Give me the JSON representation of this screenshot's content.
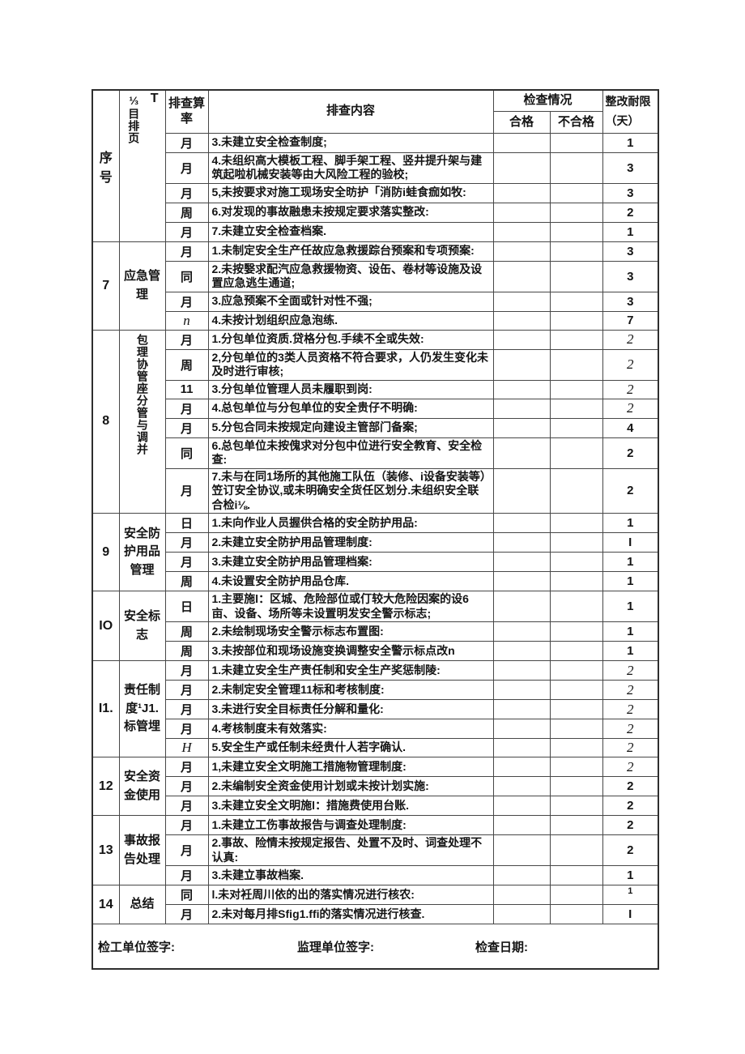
{
  "header": {
    "col_serial": "序号",
    "col_category": "⅓目排页",
    "category_mark": "T",
    "col_freq": "排查算率",
    "col_content": "排查内容",
    "col_check": "检查情况",
    "col_pass": "合格",
    "col_fail": "不合格",
    "col_deadline": "整改耐限（天）"
  },
  "sections": [
    {
      "serial": "",
      "category": "",
      "vertical": false,
      "rows": [
        {
          "freq": "月",
          "content": "3.未建立安全检查制度;",
          "pass": "",
          "fail": "",
          "deadline": "1"
        },
        {
          "freq": "月",
          "content": "4.未组织高大模板工程、脚手架工程、竖井提升架与建筑起啦机械安装等由大风险工程的验校;",
          "pass": "",
          "fail": "",
          "deadline": "3"
        },
        {
          "freq": "月",
          "content": "5,未按要求对施工现场安全昉护「消防i蛙食痂如牧:",
          "pass": "",
          "fail": "",
          "deadline": "3"
        },
        {
          "freq": "周",
          "content": "6.对发现的事故融患未按规定要求落实整改:",
          "pass": "",
          "fail": "",
          "deadline": "2"
        },
        {
          "freq": "月",
          "content": "7.未建立安全检查档案.",
          "pass": "",
          "fail": "",
          "deadline": "1"
        }
      ]
    },
    {
      "serial": "7",
      "category": "应急管理",
      "vertical": false,
      "rows": [
        {
          "freq": "月",
          "content": "1.未制定安全生产任故应急救援踪台预案和专项预案:",
          "pass": "",
          "fail": "",
          "deadline": "3"
        },
        {
          "freq": "同",
          "content": "2.未按嫛求配汽应急救援物资、设缶、卷材等设施及设置应急逃生通道;",
          "pass": "",
          "fail": "",
          "deadline": "3"
        },
        {
          "freq": "月",
          "content": "3.应急预案不全面或针对性不强;",
          "pass": "",
          "fail": "",
          "deadline": "3"
        },
        {
          "freq": "n",
          "freq_style": "italic",
          "content": "4.未按计划组织应急泡练.",
          "pass": "",
          "fail": "",
          "deadline": "7"
        }
      ]
    },
    {
      "serial": "8",
      "category": "包理协管座分管与调并",
      "vertical": true,
      "rows": [
        {
          "freq": "月",
          "content": "1.分包单位资质.贷格分包.手续不全或失效:",
          "pass": "",
          "fail": "",
          "deadline": "2",
          "dl_style": "italic"
        },
        {
          "freq": "周",
          "content": "2,分包单位的3类人员资格不符合要求，人仍发生变化未及时进行审核;",
          "pass": "",
          "fail": "",
          "deadline": "2",
          "dl_style": "italic"
        },
        {
          "freq": "11",
          "content": "3.分包单位管理人员未履职到岗:",
          "pass": "",
          "fail": "",
          "deadline": "2",
          "dl_style": "italic"
        },
        {
          "freq": "月",
          "content": "4.总包单位与分包单位的安全贵仔不明确:",
          "pass": "",
          "fail": "",
          "deadline": "2",
          "dl_style": "italic"
        },
        {
          "freq": "月",
          "content": "5.分包合同未按规定向建设主管部门备案;",
          "pass": "",
          "fail": "",
          "deadline": "4"
        },
        {
          "freq": "同",
          "content": "6.总包单位未按傀求对分包中位进行安全教育、安全检查:",
          "pass": "",
          "fail": "",
          "deadline": "2"
        },
        {
          "freq": "月",
          "content": "7.未与在同1场所的其他施工队伍（装修、i设备安装等）笠订安全协议,或未明确安全货任区划分.未组织安全联合检i⅛.",
          "pass": "",
          "fail": "",
          "deadline": "2"
        }
      ]
    },
    {
      "serial": "9",
      "category": "安全防护用品管理",
      "vertical": false,
      "rows": [
        {
          "freq": "日",
          "content": "1.未向作业人员握供合格的安全防护用品:",
          "pass": "",
          "fail": "",
          "deadline": "1"
        },
        {
          "freq": "月",
          "content": "2.未建立安全防护用品管理制度:",
          "pass": "",
          "fail": "",
          "deadline": "I"
        },
        {
          "freq": "月",
          "content": "3.未建立安全防护用品管理档案:",
          "pass": "",
          "fail": "",
          "deadline": "1"
        },
        {
          "freq": "周",
          "content": "4.未设置安全防护用品仓库.",
          "pass": "",
          "fail": "",
          "deadline": "1"
        }
      ]
    },
    {
      "serial": "IO",
      "category": "安全标志",
      "vertical": false,
      "rows": [
        {
          "freq": "日",
          "content": "1.主要施l：区城、危险部位或仃较大危险因案的设6亩、设备、场所等未设置明发安全警示标志;",
          "pass": "",
          "fail": "",
          "deadline": "1"
        },
        {
          "freq": "周",
          "content": "2.未绘制现场安全警示标志布置图:",
          "pass": "",
          "fail": "",
          "deadline": "1"
        },
        {
          "freq": "周",
          "content": "3.未按部位和现场设施变换调整安全警示标点改n",
          "pass": "",
          "fail": "",
          "deadline": "1"
        }
      ]
    },
    {
      "serial": "I1.",
      "category": "责任制度¹J1.标管埋",
      "vertical": false,
      "rows": [
        {
          "freq": "月",
          "content": "1.未建立安全生产责任制和安全生产奖惩制陵:",
          "pass": "",
          "fail": "",
          "deadline": "2",
          "dl_style": "italic"
        },
        {
          "freq": "月",
          "content": "2.未制定安全管理11标和考核制度:",
          "pass": "",
          "fail": "",
          "deadline": "2",
          "dl_style": "italic"
        },
        {
          "freq": "月",
          "content": "3.未进行安全目标责任分解和量化:",
          "pass": "",
          "fail": "",
          "deadline": "2",
          "dl_style": "italic"
        },
        {
          "freq": "月",
          "content": "4.考核制度未有效落实:",
          "pass": "",
          "fail": "",
          "deadline": "2",
          "dl_style": "italic"
        },
        {
          "freq": "H",
          "freq_style": "italic",
          "content": "5.安全生产或任制未经贵什人若字确认.",
          "pass": "",
          "fail": "",
          "deadline": "2",
          "dl_style": "italic"
        }
      ]
    },
    {
      "serial": "12",
      "category": "安全资金使用",
      "vertical": false,
      "rows": [
        {
          "freq": "月",
          "content": "1,未建立安全文明施工措施物管理制度:",
          "pass": "",
          "fail": "",
          "deadline": "2",
          "dl_style": "italic"
        },
        {
          "freq": "月",
          "content": "2.未编制安全资金使用计划或未按计划实施:",
          "pass": "",
          "fail": "",
          "deadline": "2"
        },
        {
          "freq": "月",
          "content": "3.未建立安全文明施l：措施费使用台账.",
          "pass": "",
          "fail": "",
          "deadline": "2"
        }
      ]
    },
    {
      "serial": "13",
      "category": "事故报告处理",
      "vertical": false,
      "rows": [
        {
          "freq": "月",
          "content": "1.未建立工伤事故报告与调查处理制度:",
          "pass": "",
          "fail": "",
          "deadline": "2"
        },
        {
          "freq": "月",
          "content": "2.事故、险情未按规定报告、处置不及时、词查处理不认真:",
          "pass": "",
          "fail": "",
          "deadline": "2"
        },
        {
          "freq": "月",
          "content": "3.未建立事故档案.",
          "pass": "",
          "fail": "",
          "deadline": "1"
        }
      ]
    },
    {
      "serial": "14",
      "category": "总结",
      "vertical": false,
      "rows": [
        {
          "freq": "同",
          "content": "l.未对衽周川依的出的落实情况进行核农:",
          "pass": "",
          "fail": "",
          "deadline": "1",
          "dl_style": "small"
        },
        {
          "freq": "月",
          "content": "2.未对每月排Sfig1.ffi的落实情况进行核查.",
          "pass": "",
          "fail": "",
          "deadline": "I"
        }
      ]
    }
  ],
  "footer": {
    "sign_contractor": "检工单位签字:",
    "sign_supervisor": "监理单位签字:",
    "check_date": "检查日期:"
  }
}
